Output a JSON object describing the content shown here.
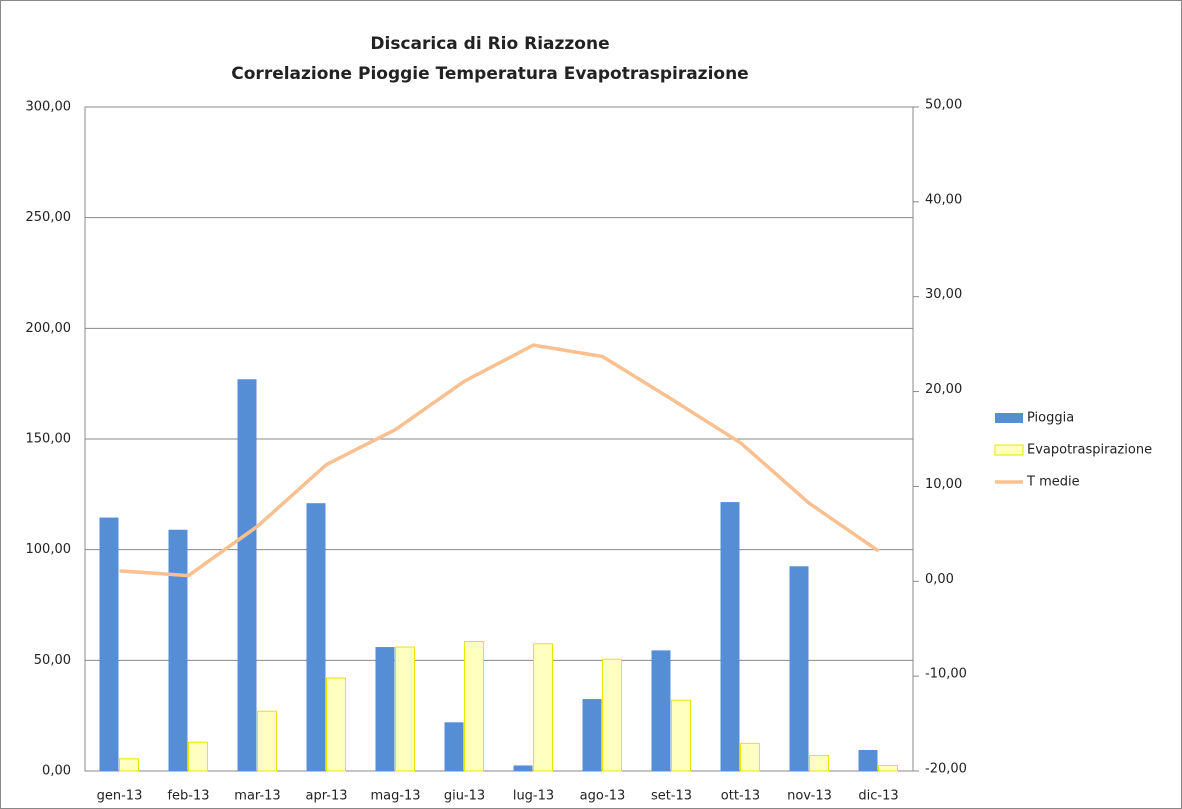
{
  "chart_data": {
    "type": "bar-line",
    "title": "Discarica di Rio Riazzone",
    "subtitle": "Correlazione Pioggie Temperatura Evapotraspirazione",
    "categories": [
      "gen-13",
      "feb-13",
      "mar-13",
      "apr-13",
      "mag-13",
      "giu-13",
      "lug-13",
      "ago-13",
      "set-13",
      "ott-13",
      "nov-13",
      "dic-13"
    ],
    "series": [
      {
        "name": "Pioggia",
        "type": "bar",
        "color": "#558ed5",
        "values": [
          114.5,
          109,
          177,
          121,
          56,
          22,
          2.5,
          32.5,
          54.5,
          121.5,
          92.5,
          9.5
        ]
      },
      {
        "name": "Evapotraspirazione",
        "type": "bar",
        "color": "#ffffc0",
        "values": [
          5.5,
          13,
          27,
          42,
          56,
          58.5,
          57.5,
          50.5,
          32,
          12.5,
          7,
          2.5
        ]
      },
      {
        "name": "T medie",
        "type": "line",
        "axis": "y2",
        "color": "#fac090",
        "values": [
          1.1,
          0.6,
          5.8,
          12.3,
          16.0,
          21.1,
          24.9,
          23.7,
          19.2,
          14.6,
          8.2,
          3.2
        ]
      }
    ],
    "ylim": [
      0,
      300
    ],
    "yticks": [
      {
        "value": 0,
        "label": "0,00"
      },
      {
        "value": 50,
        "label": "50,00"
      },
      {
        "value": 100,
        "label": "100,00"
      },
      {
        "value": 150,
        "label": "150,00"
      },
      {
        "value": 200,
        "label": "200,00"
      },
      {
        "value": 250,
        "label": "250,00"
      },
      {
        "value": 300,
        "label": "300,00"
      }
    ],
    "y2lim": [
      -20,
      50
    ],
    "y2ticks": [
      {
        "value": -20,
        "label": "-20,00"
      },
      {
        "value": -10,
        "label": "-10,00"
      },
      {
        "value": 0,
        "label": "0,00"
      },
      {
        "value": 10,
        "label": "10,00"
      },
      {
        "value": 20,
        "label": "20,00"
      },
      {
        "value": 30,
        "label": "30,00"
      },
      {
        "value": 40,
        "label": "40,00"
      },
      {
        "value": 50,
        "label": "50,00"
      }
    ],
    "grid": true,
    "legend": "right"
  }
}
